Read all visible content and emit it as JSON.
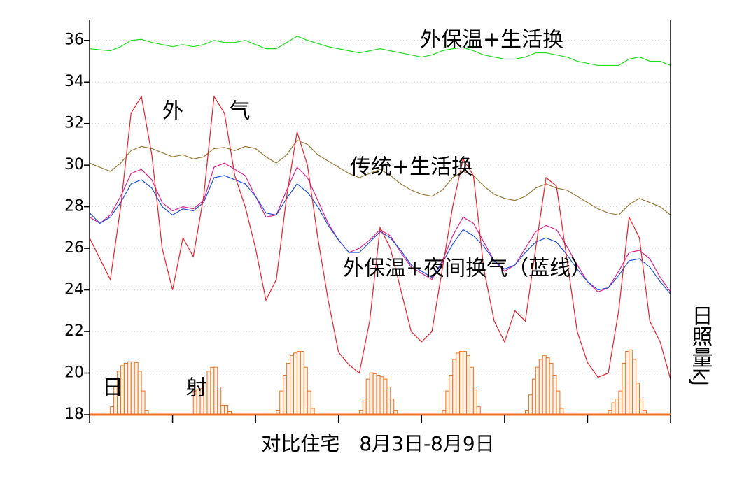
{
  "chart_data": {
    "type": "line",
    "x_label": "对比住宅　8月3日-8月9日",
    "y2_label": "日照量kJ",
    "xlim": [
      0,
      168
    ],
    "xticks": [
      0,
      24,
      48,
      72,
      96,
      120,
      144,
      168
    ],
    "ylim": [
      18,
      37
    ],
    "yticks": [
      18,
      20,
      22,
      24,
      26,
      28,
      30,
      32,
      34,
      36
    ],
    "y2lim": [
      0,
      5
    ],
    "grid": true,
    "x": [
      0,
      3,
      6,
      9,
      12,
      15,
      18,
      21,
      24,
      27,
      30,
      33,
      36,
      39,
      42,
      45,
      48,
      51,
      54,
      57,
      60,
      63,
      66,
      69,
      72,
      75,
      78,
      81,
      84,
      87,
      90,
      93,
      96,
      99,
      102,
      105,
      108,
      111,
      114,
      117,
      120,
      123,
      126,
      129,
      132,
      135,
      138,
      141,
      144,
      147,
      150,
      153,
      156,
      159,
      162,
      165,
      168
    ],
    "series": [
      {
        "name": "外保温+生活换",
        "color": "#22dd22",
        "values": [
          35.6,
          35.55,
          35.5,
          35.7,
          36,
          36.05,
          35.9,
          35.8,
          35.7,
          35.8,
          35.7,
          35.8,
          36,
          35.9,
          35.9,
          36,
          35.8,
          35.6,
          35.6,
          35.9,
          36.2,
          36,
          35.85,
          35.7,
          35.6,
          35.5,
          35.4,
          35.5,
          35.6,
          35.5,
          35.4,
          35.3,
          35.2,
          35.3,
          35.5,
          35.6,
          35.65,
          35.5,
          35.3,
          35.2,
          35.1,
          35.1,
          35.2,
          35.4,
          35.4,
          35.3,
          35.2,
          35,
          34.9,
          34.8,
          34.8,
          34.8,
          35.1,
          35.2,
          35,
          35,
          34.8
        ]
      },
      {
        "name": "传统+生活换",
        "color": "#9a7a3a",
        "values": [
          30.1,
          29.9,
          29.7,
          30.1,
          30.7,
          30.9,
          30.8,
          30.6,
          30.4,
          30.5,
          30.3,
          30.4,
          30.8,
          30.85,
          30.7,
          30.9,
          30.8,
          30.4,
          30.1,
          30.5,
          31.2,
          31,
          30.5,
          30.2,
          29.9,
          29.6,
          29.4,
          29.6,
          29.8,
          29.5,
          29.1,
          28.8,
          28.6,
          28.5,
          28.8,
          29.4,
          29.7,
          29.5,
          29,
          28.6,
          28.4,
          28.3,
          28.5,
          28.9,
          29.1,
          28.9,
          28.8,
          28.5,
          28.2,
          27.9,
          27.7,
          27.6,
          28.1,
          28.4,
          28.2,
          28,
          27.6
        ]
      },
      {
        "color": "#e0208a",
        "values": [
          27.5,
          27.2,
          27.6,
          28.5,
          29.6,
          29.8,
          29.3,
          28.2,
          27.8,
          28,
          27.9,
          28.3,
          29.9,
          30.1,
          29.8,
          29.5,
          28.5,
          27.5,
          27.6,
          28.8,
          29.9,
          29.4,
          28.3,
          27.2,
          26.4,
          25.8,
          26,
          26.4,
          26.9,
          26.6,
          25.8,
          25.1,
          24.8,
          24.5,
          25.4,
          26.6,
          27.5,
          27.2,
          26.3,
          25.4,
          24.9,
          25.2,
          26,
          26.8,
          27.1,
          26.9,
          26.1,
          25.2,
          24.4,
          23.9,
          24.1,
          24.9,
          25.8,
          25.9,
          25.5,
          24.6,
          23.9
        ]
      },
      {
        "name": "外保温+夜间换气（蓝线）",
        "color": "#2050e0",
        "values": [
          27.7,
          27.2,
          27.5,
          28.2,
          29.1,
          29.3,
          28.9,
          28,
          27.6,
          27.9,
          27.8,
          28.2,
          29.4,
          29.5,
          29.3,
          29.1,
          28.5,
          27.7,
          27.6,
          28.4,
          29.1,
          28.7,
          28,
          27.1,
          26.4,
          25.8,
          25.8,
          26.3,
          26.8,
          26.5,
          25.9,
          25.2,
          24.9,
          24.6,
          25.3,
          26.2,
          26.9,
          26.6,
          26.1,
          25.4,
          25,
          25.2,
          25.8,
          26.3,
          26.5,
          26.3,
          25.7,
          25,
          24.4,
          24,
          24.1,
          24.7,
          25.4,
          25.5,
          25.1,
          24.4,
          23.8
        ]
      },
      {
        "name": "外 气",
        "color": "#e8202a",
        "values": [
          26.5,
          25.5,
          24.5,
          28,
          32.5,
          33.3,
          30.5,
          26,
          24,
          26.5,
          25.6,
          28.5,
          33.3,
          32.5,
          29.5,
          28,
          26,
          23.5,
          24.5,
          28.5,
          31.6,
          30,
          26.5,
          23.5,
          21,
          20.4,
          20,
          22.5,
          27,
          26,
          24,
          22,
          21.5,
          22,
          25,
          28,
          30.3,
          29.5,
          25,
          22.5,
          21.5,
          23,
          22.5,
          26,
          29.4,
          29,
          25.5,
          22,
          20.5,
          19.8,
          20,
          23,
          27.5,
          26.5,
          22.5,
          21.5,
          19.7
        ]
      },
      {
        "name": "日 射",
        "type": "bar",
        "axis": "y2",
        "color": "#f07020",
        "x": [
          6,
          7,
          8,
          9,
          10,
          11,
          12,
          13,
          14,
          15,
          16,
          17,
          30,
          31,
          32,
          33,
          34,
          35,
          36,
          37,
          38,
          39,
          40,
          41,
          54,
          55,
          56,
          57,
          58,
          59,
          60,
          61,
          62,
          63,
          64,
          65,
          78,
          79,
          80,
          81,
          82,
          83,
          84,
          85,
          86,
          87,
          88,
          89,
          102,
          103,
          104,
          105,
          106,
          107,
          108,
          109,
          110,
          111,
          112,
          113,
          126,
          127,
          128,
          129,
          130,
          131,
          132,
          133,
          134,
          135,
          136,
          137,
          150,
          151,
          152,
          153,
          154,
          155,
          156,
          157,
          158,
          159,
          160,
          161
        ],
        "values": [
          0.1,
          0.35,
          0.55,
          0.62,
          0.65,
          0.67,
          0.67,
          0.66,
          0.55,
          0.3,
          0.05,
          0,
          0.3,
          0.32,
          0.33,
          0.4,
          0.55,
          0.6,
          0.6,
          0.35,
          0.12,
          0.12,
          0.04,
          0.01,
          0.05,
          0.3,
          0.5,
          0.65,
          0.75,
          0.78,
          0.8,
          0.8,
          0.6,
          0.3,
          0.08,
          0,
          0.05,
          0.2,
          0.45,
          0.53,
          0.52,
          0.5,
          0.48,
          0.45,
          0.35,
          0.2,
          0.05,
          0,
          0.05,
          0.3,
          0.5,
          0.7,
          0.78,
          0.8,
          0.8,
          0.75,
          0.6,
          0.35,
          0.1,
          0,
          0.05,
          0.25,
          0.45,
          0.6,
          0.7,
          0.75,
          0.72,
          0.65,
          0.5,
          0.3,
          0.08,
          0,
          0.05,
          0.15,
          0.2,
          0.3,
          0.65,
          0.8,
          0.82,
          0.7,
          0.4,
          0.2,
          0.05,
          0
        ]
      }
    ]
  }
}
